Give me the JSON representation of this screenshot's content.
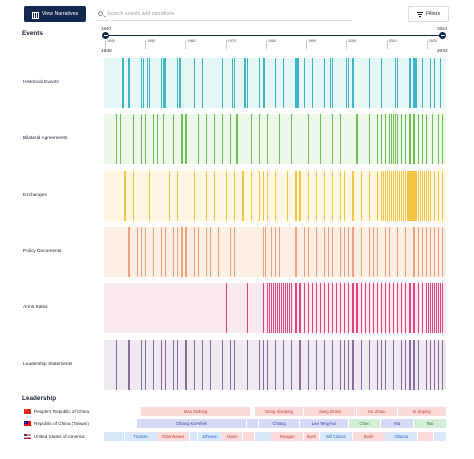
{
  "toolbar": {
    "view_label": "View Narratives",
    "search_placeholder": "Search events and narratives",
    "filters_label": "Filters"
  },
  "events_header": "Events",
  "slider": {
    "start_label": "1940",
    "end_label": "2024",
    "range_start": "1940",
    "range_end": "2024",
    "min_year": 1940,
    "max_year": 2024
  },
  "axis_ticks": [
    "1940",
    "1950",
    "1960",
    "1970",
    "1980",
    "1990",
    "2000",
    "2010",
    "2020"
  ],
  "categories": [
    {
      "label": "Historical Events",
      "color": "#3eb6c8",
      "bg": "#e7f7f8",
      "years": [
        1944.5,
        1946,
        1949,
        1949.6,
        1950.5,
        1951,
        1954,
        1954.6,
        1955,
        1958,
        1958.5,
        1962,
        1964,
        1969,
        1971.5,
        1972,
        1974.5,
        1975,
        1978,
        1979,
        1979.3,
        1982,
        1984,
        1987,
        1987.5,
        1989,
        1991,
        1994,
        1995.5,
        1996,
        1999.5,
        2000,
        2001,
        2005,
        2008,
        2011.5,
        2012,
        2015,
        2016,
        2016.5,
        2018,
        2020,
        2021,
        2022.5
      ]
    },
    {
      "label": "Bilateral Agreements",
      "color": "#6fbf57",
      "bg": "#edf7ea",
      "years": [
        1943,
        1944,
        1947,
        1949,
        1950,
        1952,
        1953,
        1954.5,
        1957,
        1959,
        1960,
        1963,
        1965,
        1967,
        1969,
        1971,
        1972.5,
        1976,
        1978,
        1980,
        1983,
        1986,
        1990,
        1993,
        1996,
        1998,
        2002,
        2005,
        2007,
        2008,
        2009,
        2010,
        2010.4,
        2011,
        2011.5,
        2012,
        2013,
        2014,
        2015,
        2016,
        2017,
        2018,
        2019,
        2020.5,
        2022,
        2023
      ]
    },
    {
      "label": "Exchanges",
      "color": "#f4c542",
      "bg": "#fff7e1",
      "years": [
        1945,
        1947,
        1951,
        1956,
        1958,
        1962,
        1965,
        1967,
        1970,
        1972,
        1974,
        1976,
        1978,
        1979,
        1980,
        1982,
        1985,
        1987,
        1988,
        1990,
        1992,
        1994,
        1996,
        1998,
        1999,
        2001,
        2003,
        2005,
        2007,
        2008,
        2008.5,
        2009,
        2009.5,
        2010,
        2010.5,
        2011,
        2011.5,
        2012,
        2012.5,
        2013,
        2013.5,
        2014,
        2014.5,
        2015,
        2015.5,
        2016,
        2016.5,
        2017,
        2017.5,
        2018,
        2018.5,
        2019,
        2019.5,
        2020,
        2021,
        2022,
        2023
      ]
    },
    {
      "label": "Policy Documents",
      "color": "#f0a07a",
      "bg": "#fdeee6",
      "years": [
        1946,
        1948,
        1949,
        1950,
        1952,
        1954,
        1955,
        1957,
        1958,
        1959,
        1960,
        1962,
        1963,
        1965,
        1966,
        1968,
        1971,
        1972,
        1979,
        1979.5,
        1981,
        1982,
        1983,
        1987,
        1989,
        1990,
        1992,
        1994,
        1995,
        1996,
        1998,
        1999,
        2000,
        2001,
        2003,
        2005,
        2006,
        2007,
        2009,
        2010,
        2012,
        2014,
        2016,
        2017,
        2018,
        2019,
        2020,
        2021,
        2022,
        2023
      ]
    },
    {
      "label": "Arms Sales",
      "color": "#e0457f",
      "bg": "#fbe9f0",
      "years": [
        1970,
        1975,
        1979,
        1980,
        1980.5,
        1981,
        1981.5,
        1982,
        1982.5,
        1983,
        1983.5,
        1984,
        1984.5,
        1985,
        1985.5,
        1986,
        1987,
        1988,
        1989,
        1990,
        1991,
        1992,
        1993,
        1994,
        1995,
        1996,
        1997,
        1998,
        1999,
        2000,
        2001,
        2002,
        2003,
        2004,
        2005,
        2006,
        2007,
        2008,
        2009,
        2010,
        2011,
        2012,
        2013,
        2014,
        2015,
        2016,
        2017,
        2018,
        2019,
        2019.5,
        2020,
        2020.5,
        2021,
        2021.5,
        2022,
        2022.5,
        2023
      ]
    },
    {
      "label": "Leadership Statements",
      "color": "#8b6a9e",
      "bg": "#efe9f1",
      "years": [
        1943,
        1946,
        1949,
        1950,
        1952,
        1954,
        1955,
        1957,
        1958,
        1960,
        1962,
        1964,
        1966,
        1969,
        1971,
        1972,
        1975,
        1978,
        1979,
        1980,
        1982,
        1984,
        1986,
        1988,
        1990,
        1992,
        1994,
        1996,
        1998,
        1999,
        2000,
        2001,
        2003,
        2005,
        2007,
        2008,
        2009,
        2011,
        2013,
        2014,
        2015,
        2016,
        2017,
        2019,
        2020,
        2021,
        2022,
        2023
      ]
    }
  ],
  "leadership_header": "Leadership",
  "leadership": [
    {
      "country": "People's Republic of China",
      "flag": "prc-flag-icon",
      "cls": "prc",
      "leaders": [
        {
          "name": "Mao Zedong",
          "start": 1949,
          "end": 1976
        },
        {
          "name": "Deng Xiaoping",
          "start": 1977,
          "end": 1989
        },
        {
          "name": "Jiang Zemin",
          "start": 1989,
          "end": 2002
        },
        {
          "name": "Hu Jintao",
          "start": 2002,
          "end": 2012
        },
        {
          "name": "Xi Jinping",
          "start": 2012,
          "end": 2024
        }
      ]
    },
    {
      "country": "Republic of China (Taiwan)",
      "flag": "roc-flag-icon",
      "cls": "roc",
      "leaders": [
        {
          "name": "Chiang Kai-shek",
          "start": 1948,
          "end": 1975,
          "tone": ""
        },
        {
          "name": "",
          "start": 1975,
          "end": 1978,
          "tone": ""
        },
        {
          "name": "Chiang",
          "start": 1978,
          "end": 1988,
          "tone": ""
        },
        {
          "name": "Lee Teng-hui",
          "start": 1988,
          "end": 2000,
          "tone": ""
        },
        {
          "name": "Chen",
          "start": 2000,
          "end": 2008,
          "tone": "alt"
        },
        {
          "name": "Ma",
          "start": 2008,
          "end": 2016,
          "tone": ""
        },
        {
          "name": "Tsai",
          "start": 2016,
          "end": 2024,
          "tone": "alt"
        }
      ]
    },
    {
      "country": "United States of America",
      "flag": "usa-flag-icon",
      "cls": "usa",
      "leaders": [
        {
          "name": "",
          "start": 1940,
          "end": 1945,
          "tone": ""
        },
        {
          "name": "Truman",
          "start": 1945,
          "end": 1953,
          "tone": ""
        },
        {
          "name": "Eisenhower",
          "start": 1953,
          "end": 1961,
          "tone": "rep"
        },
        {
          "name": "",
          "start": 1961,
          "end": 1963,
          "tone": ""
        },
        {
          "name": "Johnson",
          "start": 1963,
          "end": 1969,
          "tone": ""
        },
        {
          "name": "Nixon",
          "start": 1969,
          "end": 1974,
          "tone": "rep"
        },
        {
          "name": "",
          "start": 1974,
          "end": 1977,
          "tone": "rep"
        },
        {
          "name": "",
          "start": 1977,
          "end": 1981,
          "tone": ""
        },
        {
          "name": "Reagan",
          "start": 1981,
          "end": 1989,
          "tone": "rep"
        },
        {
          "name": "Bush",
          "start": 1989,
          "end": 1993,
          "tone": "rep"
        },
        {
          "name": "Bill Clinton",
          "start": 1993,
          "end": 2001,
          "tone": ""
        },
        {
          "name": "Bush",
          "start": 2001,
          "end": 2009,
          "tone": "rep"
        },
        {
          "name": "Obama",
          "start": 2009,
          "end": 2017,
          "tone": ""
        },
        {
          "name": "",
          "start": 2017,
          "end": 2021,
          "tone": "rep"
        },
        {
          "name": "",
          "start": 2021,
          "end": 2024,
          "tone": ""
        }
      ]
    }
  ]
}
